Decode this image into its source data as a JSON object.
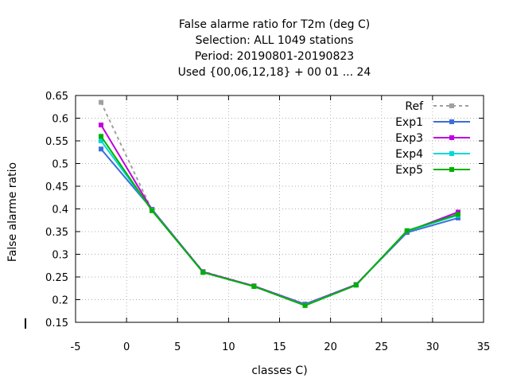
{
  "chart_data": {
    "type": "line",
    "title_lines": [
      "False alarme ratio  for T2m (deg C)",
      "Selection: ALL    1049 stations",
      "Period: 20190801-20190823",
      "Used {00,06,12,18} + 00 01 ... 24"
    ],
    "xlabel": "classes C)",
    "ylabel": "False alarme ratio",
    "xlim": [
      -5,
      35
    ],
    "ylim": [
      0.15,
      0.65
    ],
    "xticks": [
      "-5",
      "0",
      "5",
      "10",
      "15",
      "20",
      "25",
      "30",
      "35"
    ],
    "yticks": [
      "0.15",
      "0.2",
      "0.25",
      "0.3",
      "0.35",
      "0.4",
      "0.45",
      "0.5",
      "0.55",
      "0.6",
      "0.65"
    ],
    "grid": true,
    "legend_position": "top-right",
    "x": [
      -2.5,
      2.5,
      7.5,
      12.5,
      17.5,
      22.5,
      27.5,
      32.5
    ],
    "series": [
      {
        "name": "Ref",
        "color": "#a0a0a0",
        "dashed": true,
        "values": [
          0.635,
          0.397,
          0.262,
          0.23,
          0.19,
          0.233,
          0.35,
          0.392
        ]
      },
      {
        "name": "Exp1",
        "color": "#3a6fd8",
        "dashed": false,
        "values": [
          0.532,
          0.399,
          0.261,
          0.23,
          0.19,
          0.233,
          0.348,
          0.38
        ]
      },
      {
        "name": "Exp3",
        "color": "#c000e0",
        "dashed": false,
        "values": [
          0.585,
          0.398,
          0.261,
          0.23,
          0.189,
          0.233,
          0.35,
          0.393
        ]
      },
      {
        "name": "Exp4",
        "color": "#00d8d8",
        "dashed": false,
        "values": [
          0.55,
          0.397,
          0.26,
          0.229,
          0.188,
          0.232,
          0.351,
          0.386
        ]
      },
      {
        "name": "Exp5",
        "color": "#00b000",
        "dashed": false,
        "values": [
          0.56,
          0.396,
          0.26,
          0.229,
          0.187,
          0.232,
          0.352,
          0.388
        ]
      }
    ]
  }
}
